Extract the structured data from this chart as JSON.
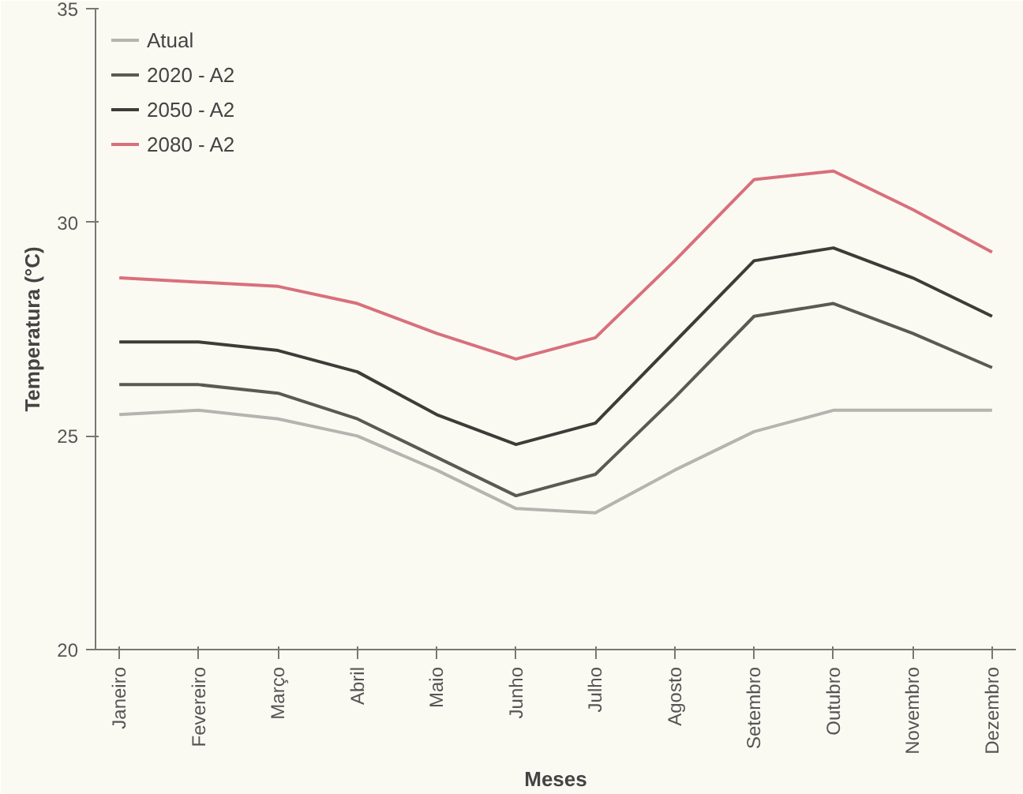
{
  "chart_data": {
    "type": "line",
    "xlabel": "Meses",
    "ylabel": "Temperatura (°C)",
    "categories": [
      "Janeiro",
      "Fevereiro",
      "Março",
      "Abril",
      "Maio",
      "Junho",
      "Julho",
      "Agosto",
      "Setembro",
      "Outubro",
      "Novembro",
      "Dezembro"
    ],
    "series": [
      {
        "name": "Atual",
        "color": "#b4b4b0",
        "values": [
          25.5,
          25.6,
          25.4,
          25.0,
          24.2,
          23.3,
          23.2,
          24.2,
          25.1,
          25.6,
          25.6,
          25.6
        ]
      },
      {
        "name": "2020 - A2",
        "color": "#5a5a55",
        "values": [
          26.2,
          26.2,
          26.0,
          25.4,
          24.5,
          23.6,
          24.1,
          25.9,
          27.8,
          28.1,
          27.4,
          26.6
        ]
      },
      {
        "name": "2050 - A2",
        "color": "#3c3c38",
        "values": [
          27.2,
          27.2,
          27.0,
          26.5,
          25.5,
          24.8,
          25.3,
          27.2,
          29.1,
          29.4,
          28.7,
          27.8
        ]
      },
      {
        "name": "2080 - A2",
        "color": "#d8707c",
        "values": [
          28.7,
          28.6,
          28.5,
          28.1,
          27.4,
          26.8,
          27.3,
          29.1,
          31.0,
          31.2,
          30.3,
          29.3
        ]
      }
    ],
    "ylim": [
      20,
      35
    ],
    "yticks": [
      20,
      25,
      30,
      35
    ],
    "grid": false,
    "legend": "top left",
    "line_style": "solid"
  }
}
